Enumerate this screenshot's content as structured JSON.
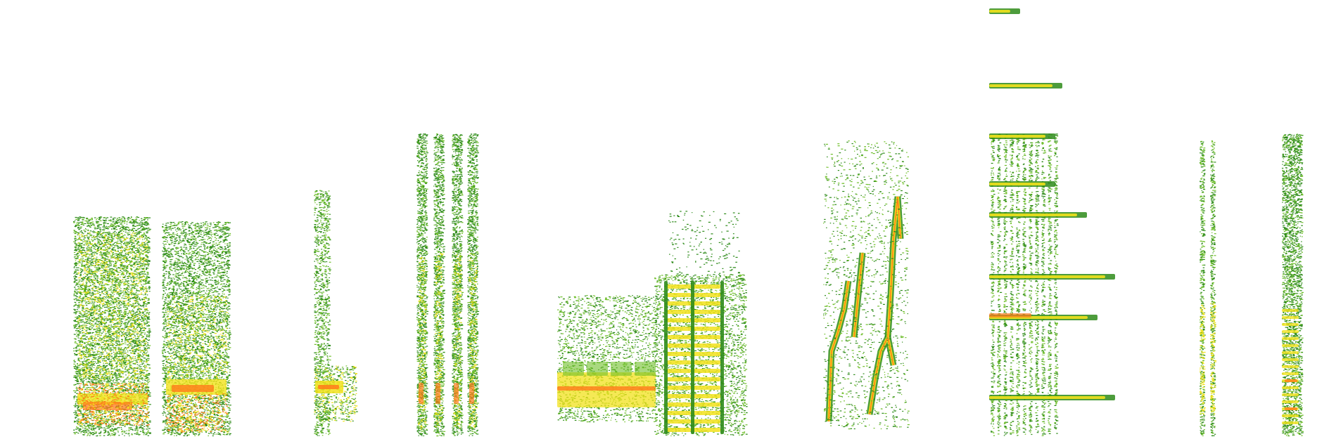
{
  "image": {
    "description_free": true,
    "background": "#ffffff",
    "palette": {
      "low": "#2e8b1a",
      "mid": "#6fbf2a",
      "high": "#f2e21c",
      "peak": "#ff7a1a",
      "max": "#ff2a1a"
    },
    "sonograms": [
      {
        "id": "block-a"
      },
      {
        "id": "block-b"
      },
      {
        "id": "spike-a"
      },
      {
        "id": "stripes"
      },
      {
        "id": "ladder"
      },
      {
        "id": "sweeps"
      },
      {
        "id": "harmonic-comb"
      },
      {
        "id": "thin-pair"
      },
      {
        "id": "tall-stack"
      }
    ]
  }
}
